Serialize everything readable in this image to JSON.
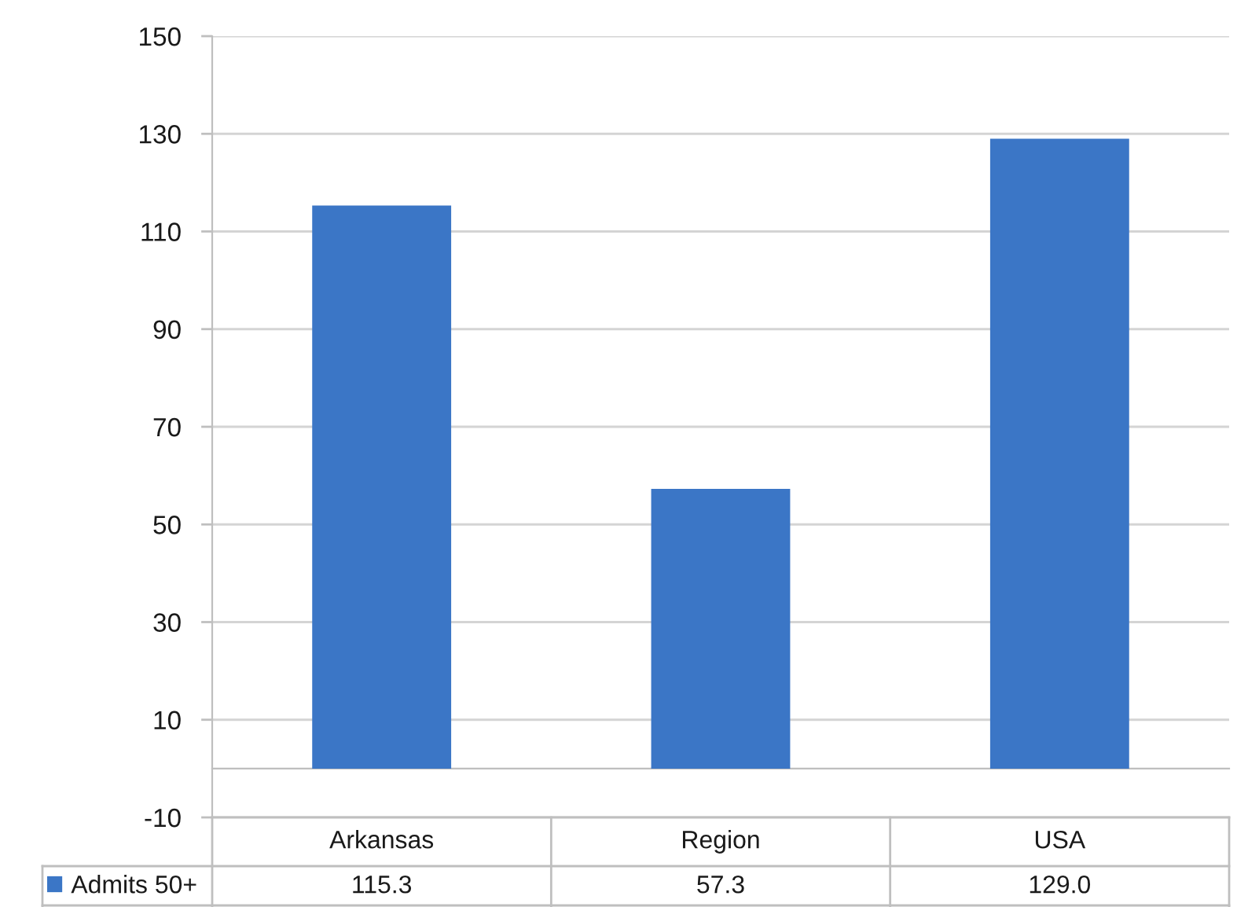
{
  "chart_data": {
    "type": "bar",
    "categories": [
      "Arkansas",
      "Region",
      "USA"
    ],
    "series": [
      {
        "name": "Admits 50+",
        "color": "#3b76c6",
        "values": [
          115.3,
          57.3,
          129.0
        ],
        "value_labels": [
          "115.3",
          "57.3",
          "129.0"
        ]
      }
    ],
    "ylim": [
      -10,
      150
    ],
    "yticks": [
      -10,
      10,
      30,
      50,
      70,
      90,
      110,
      130,
      150
    ],
    "grid": "y",
    "legend": "bottom left"
  }
}
